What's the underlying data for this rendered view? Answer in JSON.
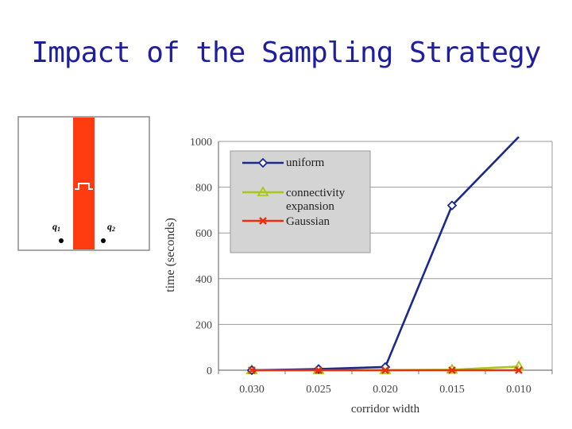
{
  "slide": {
    "title": "Impact of the Sampling Strategy"
  },
  "inset": {
    "label_q1": "q",
    "label_q1_sub": "1",
    "label_q2": "q",
    "label_q2_sub": "2"
  },
  "colors": {
    "title": "#1f1f9e",
    "corridor": "#ff3b0f",
    "uniform": "#1a2a8c",
    "connectivity": "#a8c814",
    "gaussian": "#e8300c",
    "grid": "#9a9a9a",
    "legend_bg": "#d4d4d4"
  },
  "chart_data": {
    "type": "line",
    "categories": [
      "0.030",
      "0.025",
      "0.020",
      "0.015",
      "0.010"
    ],
    "series": [
      {
        "name": "uniform",
        "marker": "diamond",
        "values": [
          0,
          5,
          14,
          720,
          1020
        ]
      },
      {
        "name": "connectivity expansion",
        "marker": "triangle",
        "values": [
          0,
          0,
          0,
          2,
          16
        ]
      },
      {
        "name": "Gaussian",
        "marker": "x",
        "values": [
          0,
          0,
          0,
          0,
          0
        ]
      }
    ],
    "xlabel": "corridor width",
    "ylabel": "time (seconds)",
    "ylim": [
      0,
      1000
    ],
    "yticks": [
      "0",
      "200",
      "400",
      "600",
      "800",
      "1000"
    ],
    "grid": true,
    "legend_position": "top-left",
    "legend": [
      "uniform",
      "connectivity expansion",
      "Gaussian"
    ]
  }
}
